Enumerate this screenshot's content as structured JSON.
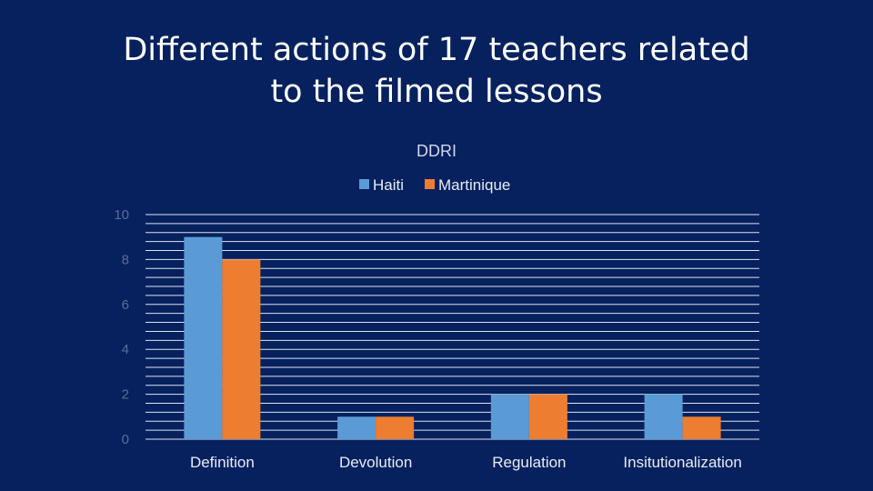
{
  "slide": {
    "title_line1": "Different actions of 17 teachers related",
    "title_line2": "to the filmed lessons"
  },
  "colors": {
    "background": "#06215e",
    "haiti": "#5b9bd5",
    "martinique": "#ed7d31"
  },
  "chart_data": {
    "type": "bar",
    "title": "DDRI",
    "categories": [
      "Definition",
      "Devolution",
      "Regulation",
      "Insitutionalization"
    ],
    "series": [
      {
        "name": "Haiti",
        "values": [
          9,
          1,
          2,
          2
        ]
      },
      {
        "name": "Martinique",
        "values": [
          8,
          1,
          2,
          1
        ]
      }
    ],
    "ylim": [
      0,
      10
    ],
    "yticks": [
      0,
      2,
      4,
      6,
      8,
      10
    ],
    "grid": true,
    "legend_position": "top"
  }
}
